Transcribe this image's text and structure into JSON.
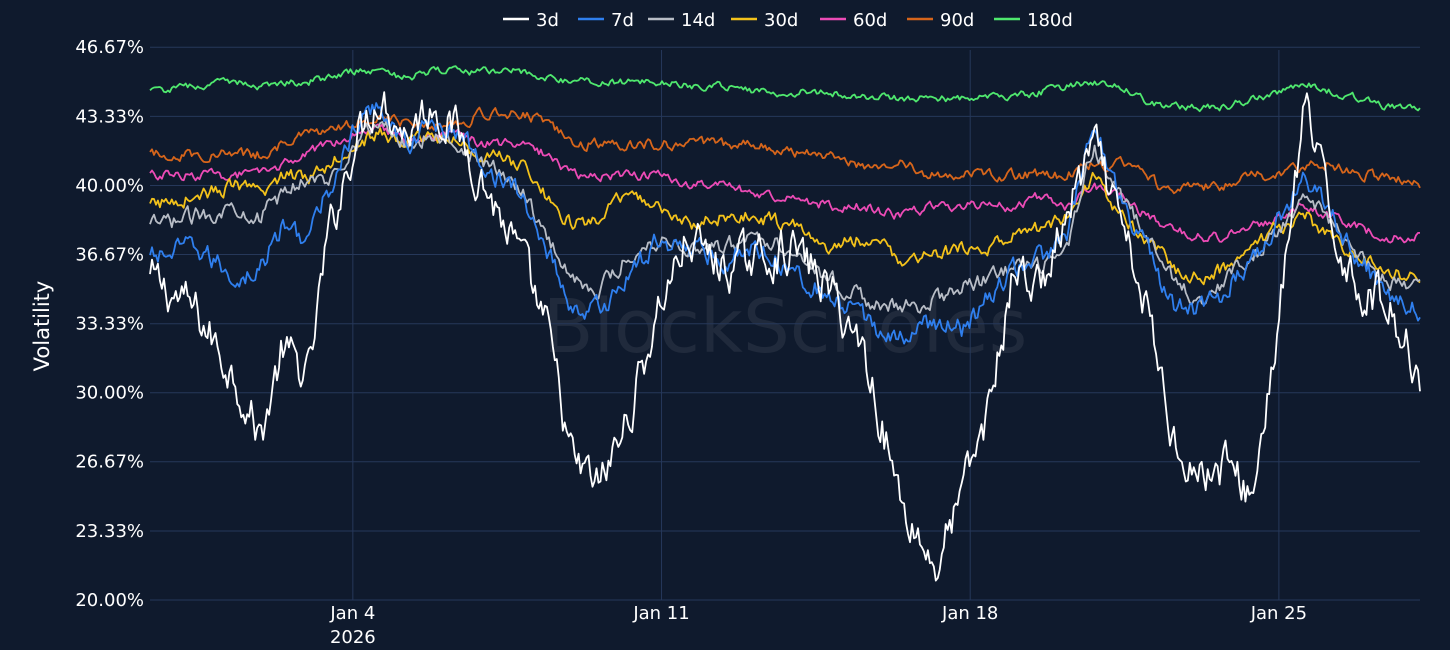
{
  "watermark": "BlockScholes",
  "chart_data": {
    "type": "line",
    "ylabel": "Volatility",
    "ylim": [
      20,
      47.5
    ],
    "yticks": [
      20.0,
      23.33,
      26.67,
      30.0,
      33.33,
      36.67,
      40.0,
      43.33,
      46.67
    ],
    "ytick_labels": [
      "20.00%",
      "23.33%",
      "26.67%",
      "30.00%",
      "33.33%",
      "36.67%",
      "40.00%",
      "43.33%",
      "46.67%"
    ],
    "xlim": [
      -0.6,
      28.2
    ],
    "xticks": [
      {
        "x": 4,
        "label": "Jan 4",
        "sublabel": "2026"
      },
      {
        "x": 11,
        "label": "Jan 11",
        "sublabel": ""
      },
      {
        "x": 18,
        "label": "Jan 18",
        "sublabel": ""
      },
      {
        "x": 25,
        "label": "Jan 25",
        "sublabel": ""
      }
    ],
    "grid": true,
    "legend_position": "top-center",
    "x": [
      -0.6,
      0.4,
      1.4,
      1.9,
      2.4,
      3.0,
      3.4,
      4.0,
      4.6,
      5.2,
      5.8,
      6.4,
      7.0,
      7.8,
      8.4,
      9.0,
      9.6,
      10.2,
      11.0,
      11.6,
      12.4,
      13.2,
      14.0,
      14.8,
      15.6,
      16.4,
      17.2,
      17.8,
      18.4,
      19.0,
      19.6,
      20.2,
      20.8,
      21.4,
      22.0,
      22.6,
      23.2,
      23.8,
      24.4,
      25.0,
      25.6,
      26.2,
      26.8,
      27.4,
      28.2
    ],
    "series": [
      {
        "name": "3d",
        "color": "#ffffff",
        "values": [
          35.5,
          34.0,
          30.5,
          27.8,
          32.0,
          30.8,
          37.0,
          42.0,
          44.5,
          42.5,
          44.0,
          42.5,
          40.0,
          36.5,
          33.0,
          26.5,
          25.5,
          28.5,
          34.5,
          37.5,
          36.0,
          36.5,
          37.0,
          35.0,
          32.0,
          25.0,
          21.5,
          25.0,
          29.0,
          36.0,
          35.0,
          38.5,
          42.0,
          38.0,
          34.0,
          28.0,
          26.0,
          26.5,
          25.0,
          33.5,
          44.0,
          38.0,
          35.0,
          34.5,
          31.0
        ]
      },
      {
        "name": "7d",
        "color": "#2f7fee",
        "values": [
          36.5,
          37.0,
          35.5,
          36.0,
          38.0,
          37.5,
          39.5,
          42.5,
          44.0,
          42.0,
          43.0,
          42.5,
          41.0,
          39.5,
          37.0,
          34.0,
          34.0,
          35.5,
          37.5,
          37.0,
          36.5,
          37.0,
          36.0,
          34.5,
          33.5,
          32.5,
          33.5,
          33.0,
          34.5,
          36.0,
          36.5,
          37.5,
          43.0,
          39.5,
          37.0,
          34.0,
          34.0,
          35.0,
          36.5,
          38.5,
          40.5,
          38.5,
          36.5,
          35.0,
          34.0
        ]
      },
      {
        "name": "14d",
        "color": "#b8bdc6",
        "values": [
          38.0,
          38.5,
          39.0,
          38.5,
          39.5,
          40.5,
          40.0,
          42.0,
          43.0,
          42.0,
          42.5,
          42.0,
          41.0,
          40.0,
          37.5,
          35.5,
          35.0,
          36.5,
          37.5,
          37.0,
          37.0,
          37.5,
          37.0,
          35.5,
          34.5,
          34.0,
          34.5,
          35.0,
          35.5,
          36.0,
          36.0,
          37.0,
          42.0,
          39.5,
          37.5,
          35.5,
          34.5,
          35.5,
          36.5,
          38.0,
          39.5,
          38.0,
          36.5,
          35.5,
          35.0
        ]
      },
      {
        "name": "30d",
        "color": "#f3c21b",
        "values": [
          39.0,
          39.5,
          40.0,
          39.5,
          40.5,
          40.5,
          41.0,
          42.0,
          42.5,
          42.0,
          42.5,
          42.0,
          41.5,
          41.0,
          39.5,
          38.0,
          38.5,
          39.5,
          39.0,
          38.0,
          38.5,
          38.5,
          38.0,
          37.0,
          37.5,
          36.5,
          36.5,
          37.0,
          37.0,
          37.5,
          38.0,
          38.5,
          40.5,
          38.5,
          37.5,
          36.0,
          35.5,
          36.0,
          37.0,
          38.0,
          38.5,
          37.5,
          36.5,
          36.0,
          35.5
        ]
      },
      {
        "name": "60d",
        "color": "#ec4bb6",
        "values": [
          40.5,
          40.5,
          40.5,
          40.5,
          41.0,
          41.5,
          42.0,
          42.5,
          43.0,
          42.0,
          42.5,
          42.5,
          42.0,
          42.0,
          41.5,
          40.5,
          40.5,
          40.5,
          40.5,
          40.0,
          40.0,
          39.5,
          39.5,
          39.0,
          39.0,
          38.5,
          39.0,
          39.0,
          39.0,
          39.0,
          39.5,
          39.0,
          40.0,
          39.5,
          38.5,
          38.0,
          37.5,
          37.5,
          38.0,
          38.5,
          39.0,
          38.5,
          38.0,
          37.5,
          37.5
        ]
      },
      {
        "name": "90d",
        "color": "#d6651b",
        "values": [
          41.5,
          41.5,
          41.5,
          41.5,
          42.0,
          42.5,
          42.5,
          43.0,
          43.5,
          43.0,
          43.0,
          43.0,
          43.5,
          43.5,
          43.0,
          42.0,
          42.0,
          42.0,
          42.0,
          42.0,
          42.0,
          42.0,
          41.5,
          41.5,
          41.0,
          41.0,
          40.5,
          40.5,
          40.5,
          40.5,
          40.5,
          40.5,
          41.0,
          41.0,
          40.5,
          39.5,
          40.0,
          40.0,
          40.5,
          40.5,
          41.0,
          41.0,
          40.5,
          40.5,
          40.0
        ]
      },
      {
        "name": "180d",
        "color": "#4fe86e",
        "values": [
          44.5,
          44.8,
          45.0,
          44.8,
          45.0,
          45.0,
          45.2,
          45.5,
          45.5,
          45.2,
          45.5,
          45.5,
          45.5,
          45.5,
          45.2,
          45.0,
          45.0,
          45.0,
          45.0,
          44.8,
          44.8,
          44.5,
          44.5,
          44.5,
          44.3,
          44.2,
          44.2,
          44.2,
          44.2,
          44.3,
          44.5,
          44.8,
          45.0,
          44.8,
          44.0,
          43.8,
          43.7,
          43.8,
          44.2,
          44.5,
          45.0,
          44.5,
          44.2,
          43.8,
          43.8
        ]
      }
    ]
  }
}
